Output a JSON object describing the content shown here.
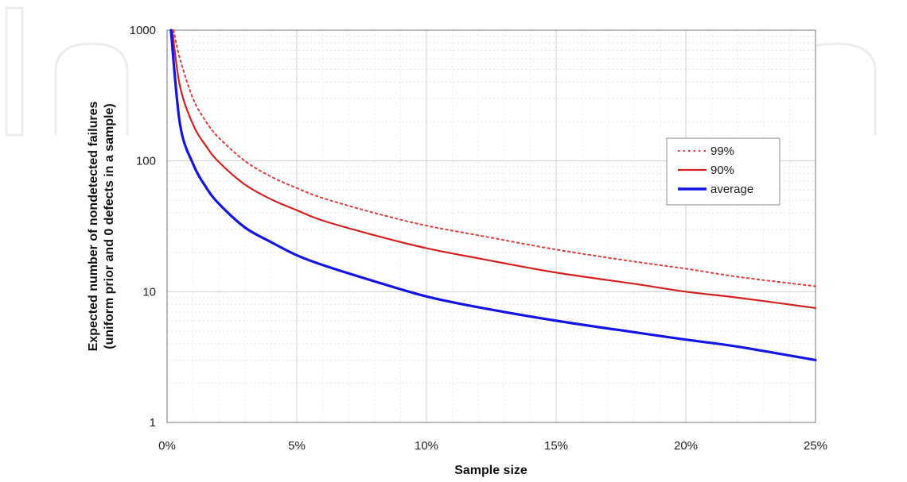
{
  "chart_data": {
    "type": "line",
    "title": "",
    "xlabel": "Sample size",
    "ylabel_line1": "Expected number of nondetected failures",
    "ylabel_line2": "(uniform prior and 0 defects in a sample)",
    "x_unit": "%",
    "xlim": [
      0,
      25
    ],
    "ylim": [
      1,
      1000
    ],
    "yscale": "log",
    "x_ticks": [
      0,
      5,
      10,
      15,
      20,
      25
    ],
    "x_tick_labels": [
      "0%",
      "5%",
      "10%",
      "15%",
      "20%",
      "25%"
    ],
    "y_ticks": [
      1,
      10,
      100,
      1000
    ],
    "y_tick_labels": [
      "1",
      "10",
      "100",
      "1000"
    ],
    "grid": true,
    "legend_position": "right",
    "series": [
      {
        "name": "99%",
        "style": "dotted",
        "color": "#e23b3b",
        "x": [
          0.25,
          0.5,
          1,
          1.5,
          2,
          3,
          4,
          5,
          6,
          8,
          10,
          12,
          15,
          18,
          20,
          22,
          25
        ],
        "y": [
          1000,
          600,
          300,
          200,
          150,
          100,
          76,
          62,
          52,
          40,
          32,
          27,
          21,
          17,
          15,
          13,
          11
        ]
      },
      {
        "name": "90%",
        "style": "solid",
        "color": "#d42020",
        "x": [
          0.2,
          0.5,
          1,
          1.5,
          2,
          3,
          4,
          5,
          6,
          8,
          10,
          12,
          15,
          18,
          20,
          22,
          25
        ],
        "y": [
          1000,
          370,
          190,
          130,
          98,
          66,
          51,
          42,
          35,
          27,
          21.5,
          18,
          14,
          11.5,
          10,
          9,
          7.5
        ]
      },
      {
        "name": "average",
        "style": "solid",
        "color": "#1414e6",
        "x": [
          0.15,
          0.5,
          1,
          1.5,
          2,
          3,
          4,
          5,
          6,
          8,
          10,
          12,
          15,
          18,
          20,
          22,
          25
        ],
        "y": [
          1000,
          190,
          95,
          63,
          47,
          31,
          24,
          19,
          16,
          12,
          9.2,
          7.6,
          6,
          4.9,
          4.3,
          3.8,
          3
        ]
      }
    ]
  }
}
